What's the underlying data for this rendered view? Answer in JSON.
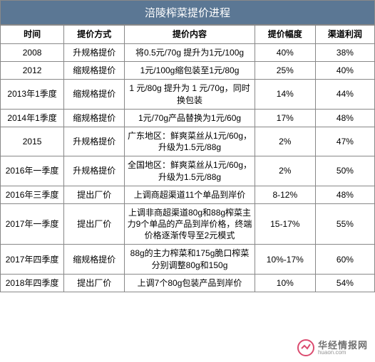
{
  "title": "涪陵榨菜提价进程",
  "columns": [
    "时间",
    "提价方式",
    "提价内容",
    "提价幅度",
    "渠道利润"
  ],
  "rows": [
    {
      "time": "2008",
      "method": "升规格提价",
      "content": "将0.5元/70g 提升为1元/100g",
      "range": "40%",
      "profit": "38%"
    },
    {
      "time": "2012",
      "method": "缩规格提价",
      "content": "1元/100g缩包装至1元/80g",
      "range": "25%",
      "profit": "40%"
    },
    {
      "time": "2013年1季度",
      "method": "缩规格提价",
      "content": "1 元/80g 提升为 1 元/70g，同时换包装",
      "range": "14%",
      "profit": "44%"
    },
    {
      "time": "2014年1季度",
      "method": "缩规格提价",
      "content": "1元/70g产品替换为1元/60g",
      "range": "17%",
      "profit": "48%"
    },
    {
      "time": "2015",
      "method": "升规格提价",
      "content": "广东地区：鲜爽菜丝从1元/60g，升级为1.5元/88g",
      "range": "2%",
      "profit": "47%"
    },
    {
      "time": "2016年一季度",
      "method": "升规格提价",
      "content": "全国地区：鲜爽菜丝从1元/60g，升级为1.5元/88g",
      "range": "2%",
      "profit": "50%"
    },
    {
      "time": "2016年三季度",
      "method": "提出厂价",
      "content": "上调商超渠道11个单品到岸价",
      "range": "8-12%",
      "profit": "48%"
    },
    {
      "time": "2017年一季度",
      "method": "提出厂价",
      "content": "上调非商超渠道80g和88g榨菜主力9个单品的产品到岸价格，终端价格逐渐传导至2元模式",
      "range": "15-17%",
      "profit": "55%"
    },
    {
      "time": "2017年四季度",
      "method": "缩规格提价",
      "content": "88g的主力榨菜和175g脆口榨菜分别调整80g和150g",
      "range": "10%-17%",
      "profit": "60%"
    },
    {
      "time": "2018年四季度",
      "method": "提出厂价",
      "content": "上调7个80g包装产品到岸价",
      "range": "10%",
      "profit": "54%"
    }
  ],
  "watermark": {
    "cn": "华经情报网",
    "en": "huaon.com"
  },
  "colors": {
    "header_bg": "#5b7794",
    "header_fg": "#ffffff",
    "border": "#888888",
    "text": "#000000"
  }
}
